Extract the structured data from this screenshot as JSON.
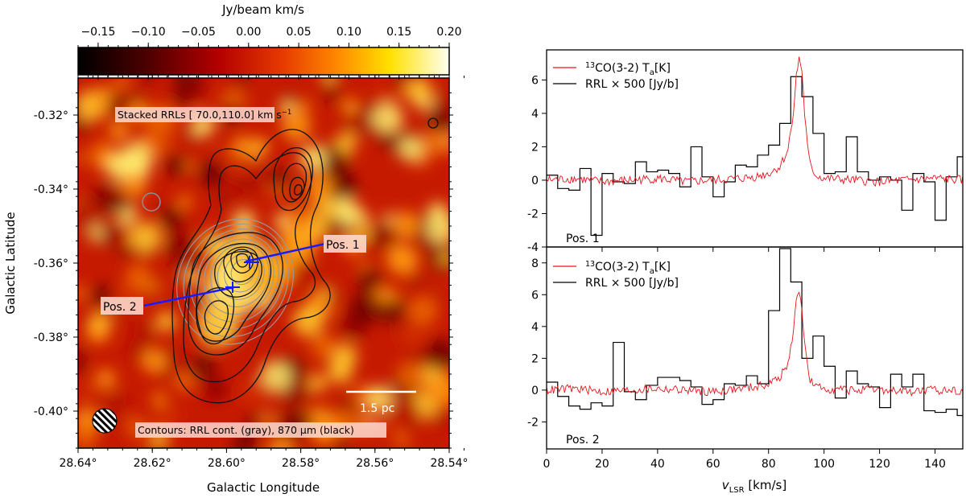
{
  "chart_data": [
    {
      "type": "heatmap",
      "xlabel": "Galactic Longitude",
      "ylabel": "Galactic Latitude",
      "xlim": [
        28.64,
        28.54
      ],
      "ylim": [
        -0.41,
        -0.31
      ],
      "xticks": [
        28.64,
        28.62,
        28.6,
        28.58,
        28.56,
        28.54
      ],
      "xtick_labels": [
        "28.64°",
        "28.62°",
        "28.60°",
        "28.58°",
        "28.56°",
        "28.54°"
      ],
      "yticks": [
        -0.32,
        -0.34,
        -0.36,
        -0.38,
        -0.4
      ],
      "ytick_labels": [
        "-0.32°",
        "-0.34°",
        "-0.36°",
        "-0.38°",
        "-0.40°"
      ],
      "colorbar": {
        "label": "Jy/beam km/s",
        "range": [
          -0.17,
          0.2
        ],
        "ticks": [
          -0.15,
          -0.1,
          -0.05,
          0.0,
          0.05,
          0.1,
          0.15,
          0.2
        ],
        "tick_labels": [
          "−0.15",
          "−0.10",
          "−0.05",
          "0.00",
          "0.05",
          "0.10",
          "0.15",
          "0.20"
        ]
      },
      "title_box": "Stacked RRLs [ 70.0,110.0] km s",
      "title_box_sup": "−1",
      "contour_label": "Contours: RRL cont. (gray), 870 μm (black)",
      "scalebar_label": "1.5 pc",
      "positions": [
        {
          "name": "Pos. 1",
          "l": 28.598,
          "b": -0.36
        },
        {
          "name": "Pos. 2",
          "l": 28.602,
          "b": -0.367
        }
      ],
      "pos_label_1": "Pos. 1",
      "pos_label_2": "Pos. 2"
    },
    {
      "type": "line",
      "panel": "Pos. 1",
      "xlabel_main": "v",
      "xlabel_sub": "LSR",
      "xlabel_unit": " [km/s]",
      "xlim": [
        0,
        150
      ],
      "ylim": [
        -4,
        7.8
      ],
      "yticks": [
        -4,
        -2,
        0,
        2,
        4,
        6
      ],
      "xticks": [
        0,
        20,
        40,
        60,
        80,
        100,
        120,
        140
      ],
      "legend": [
        {
          "sup": "13",
          "label": "CO(3-2) T",
          "sub": "a",
          "unit": "[K]",
          "color": "#e8141c"
        },
        {
          "label": "RRL × 500 [Jy/b]",
          "color": "#000000"
        }
      ],
      "series": [
        {
          "name": "RRL × 500 [Jy/b]",
          "style": "step",
          "edges": [
            0,
            4,
            8,
            12,
            16,
            20,
            24,
            28,
            32,
            36,
            40,
            44,
            48,
            52,
            56,
            60,
            64,
            68,
            72,
            76,
            80,
            84,
            88,
            92,
            96,
            100,
            104,
            108,
            112,
            116,
            120,
            124,
            128,
            132,
            136,
            140,
            144,
            148,
            150
          ],
          "values": [
            0.3,
            -0.5,
            -0.6,
            0.7,
            -3.3,
            0.4,
            -0.1,
            -0.2,
            1.1,
            0.5,
            0.6,
            0.4,
            -0.4,
            2.0,
            0.2,
            -1.0,
            -0.1,
            0.9,
            0.8,
            1.5,
            2.1,
            3.4,
            6.2,
            5.0,
            2.8,
            0.4,
            0.5,
            2.6,
            0.5,
            0.0,
            0.2,
            0.0,
            -1.8,
            0.4,
            -0.1,
            -2.4,
            0.2,
            1.4
          ]
        },
        {
          "name": "13CO(3-2) Ta [K]",
          "style": "line",
          "x": [
            0,
            10,
            20,
            30,
            40,
            50,
            60,
            70,
            75,
            80,
            84,
            87,
            89,
            90,
            91,
            92,
            93,
            94,
            95,
            97,
            100,
            110,
            120,
            130,
            140,
            150
          ],
          "values": [
            0.0,
            0.1,
            -0.1,
            0.0,
            0.1,
            -0.1,
            0.0,
            0.1,
            0.2,
            0.4,
            0.8,
            1.8,
            4.2,
            6.2,
            7.3,
            6.6,
            4.0,
            2.0,
            0.9,
            0.3,
            0.1,
            0.0,
            -0.1,
            0.0,
            0.1,
            0.0
          ]
        }
      ],
      "corner_label": "Pos. 1"
    },
    {
      "type": "line",
      "panel": "Pos. 2",
      "xlabel_main": "v",
      "xlabel_sub": "LSR",
      "xlabel_unit": " [km/s]",
      "xlim": [
        0,
        150
      ],
      "ylim": [
        -3.7,
        9.0
      ],
      "yticks": [
        -2,
        0,
        2,
        4,
        6,
        8
      ],
      "xticks": [
        0,
        20,
        40,
        60,
        80,
        100,
        120,
        140
      ],
      "xtick_labels": [
        "0",
        "20",
        "40",
        "60",
        "80",
        "100",
        "120",
        "140"
      ],
      "legend": [
        {
          "sup": "13",
          "label": "CO(3-2) T",
          "sub": "a",
          "unit": "[K]",
          "color": "#e8141c"
        },
        {
          "label": "RRL × 500 [Jy/b]",
          "color": "#000000"
        }
      ],
      "series": [
        {
          "name": "RRL × 500 [Jy/b]",
          "style": "step",
          "edges": [
            0,
            4,
            8,
            12,
            16,
            20,
            24,
            28,
            32,
            36,
            40,
            44,
            48,
            52,
            56,
            60,
            64,
            68,
            72,
            76,
            80,
            84,
            88,
            92,
            96,
            100,
            104,
            108,
            112,
            116,
            120,
            124,
            128,
            132,
            136,
            140,
            144,
            148,
            150
          ],
          "values": [
            0.5,
            -0.4,
            -1.0,
            -1.2,
            -0.8,
            -1.0,
            3.0,
            -0.1,
            -0.6,
            0.3,
            0.8,
            0.8,
            0.6,
            0.2,
            -0.9,
            -0.6,
            0.4,
            0.3,
            0.9,
            0.4,
            5.0,
            8.9,
            6.8,
            2.0,
            3.4,
            1.5,
            -0.5,
            1.2,
            0.4,
            0.2,
            -1.1,
            1.0,
            0.2,
            1.0,
            -1.3,
            -1.4,
            -1.2,
            -1.6
          ]
        },
        {
          "name": "13CO(3-2) Ta [K]",
          "style": "line",
          "x": [
            0,
            10,
            20,
            30,
            40,
            50,
            60,
            70,
            75,
            80,
            84,
            87,
            89,
            90,
            91,
            92,
            93,
            94,
            95,
            97,
            100,
            110,
            120,
            130,
            140,
            150
          ],
          "values": [
            0.0,
            0.1,
            -0.1,
            0.0,
            0.1,
            0.0,
            -0.1,
            0.1,
            0.2,
            0.4,
            0.8,
            1.6,
            3.8,
            5.5,
            6.3,
            5.2,
            3.0,
            1.5,
            0.6,
            0.2,
            0.1,
            0.0,
            0.0,
            -0.1,
            0.0,
            0.0
          ]
        }
      ],
      "corner_label": "Pos. 2"
    }
  ]
}
